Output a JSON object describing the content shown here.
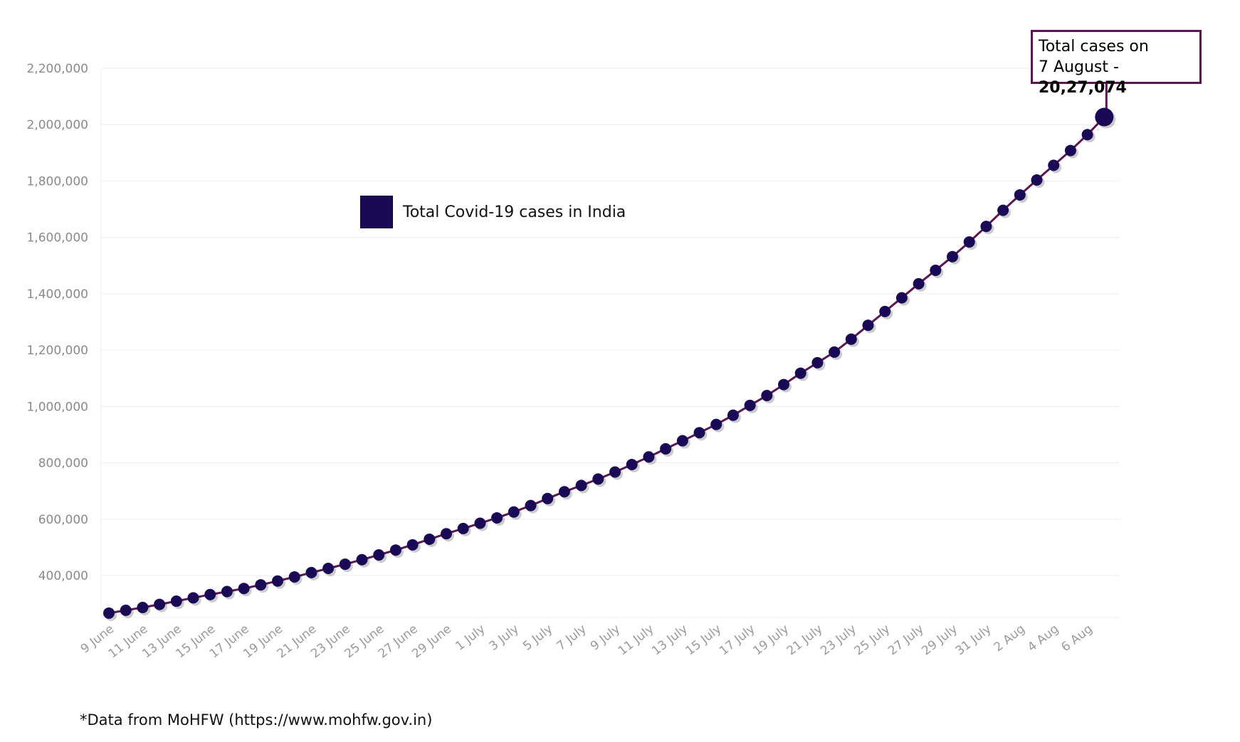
{
  "chart_data": {
    "type": "line",
    "legend": "Total Covid-19 cases in India",
    "legend_position": "top-left",
    "ylim": [
      260000,
      2240000
    ],
    "yticks": [
      400000,
      600000,
      800000,
      1000000,
      1200000,
      1400000,
      1600000,
      1800000,
      2000000,
      2200000
    ],
    "ytick_labels": [
      "400,000",
      "600,000",
      "800,000",
      "1,000,000",
      "1,200,000",
      "1,400,000",
      "1,600,000",
      "1,800,000",
      "2,000,000",
      "2,200,000"
    ],
    "xtick_labels": [
      "9 June",
      "11 June",
      "13 June",
      "15 June",
      "17 June",
      "19 June",
      "21 June",
      "23 June",
      "25 June",
      "27 June",
      "29 June",
      "1 July",
      "3 July",
      "5 July",
      "7 July",
      "9 July",
      "11 July",
      "13 July",
      "15 July",
      "17 July",
      "19 July",
      "21 July",
      "23 July",
      "25 July",
      "27 July",
      "29 July",
      "31 July",
      "2 Aug",
      "4 Aug",
      "6 Aug"
    ],
    "grid": true,
    "line_color": "#5a1750",
    "marker_color": "#1a0a55",
    "series": [
      {
        "name": "Total Covid-19 cases in India",
        "values": [
          266598,
          276583,
          286579,
          297535,
          308993,
          320922,
          332424,
          343091,
          354065,
          366946,
          380532,
          395048,
          410461,
          425282,
          440215,
          456183,
          473105,
          490401,
          508953,
          528859,
          548318,
          566840,
          585493,
          604641,
          625544,
          648315,
          673165,
          697413,
          719665,
          742417,
          767296,
          793802,
          820916,
          849553,
          878254,
          906752,
          936181,
          968876,
          1003832,
          1038716,
          1077618,
          1118043,
          1155191,
          1192915,
          1238635,
          1287945,
          1336861,
          1385522,
          1435453,
          1483156,
          1531669,
          1583792,
          1638870,
          1695988,
          1750723,
          1803695,
          1855745,
          1908254,
          1964536,
          2027074
        ]
      }
    ],
    "annotation": {
      "line1": "Total cases on",
      "line2_prefix": "7 August - ",
      "line2_value": "20,27,074"
    },
    "source_note": "*Data from MoHFW (https://www.mohfw.gov.in)"
  }
}
